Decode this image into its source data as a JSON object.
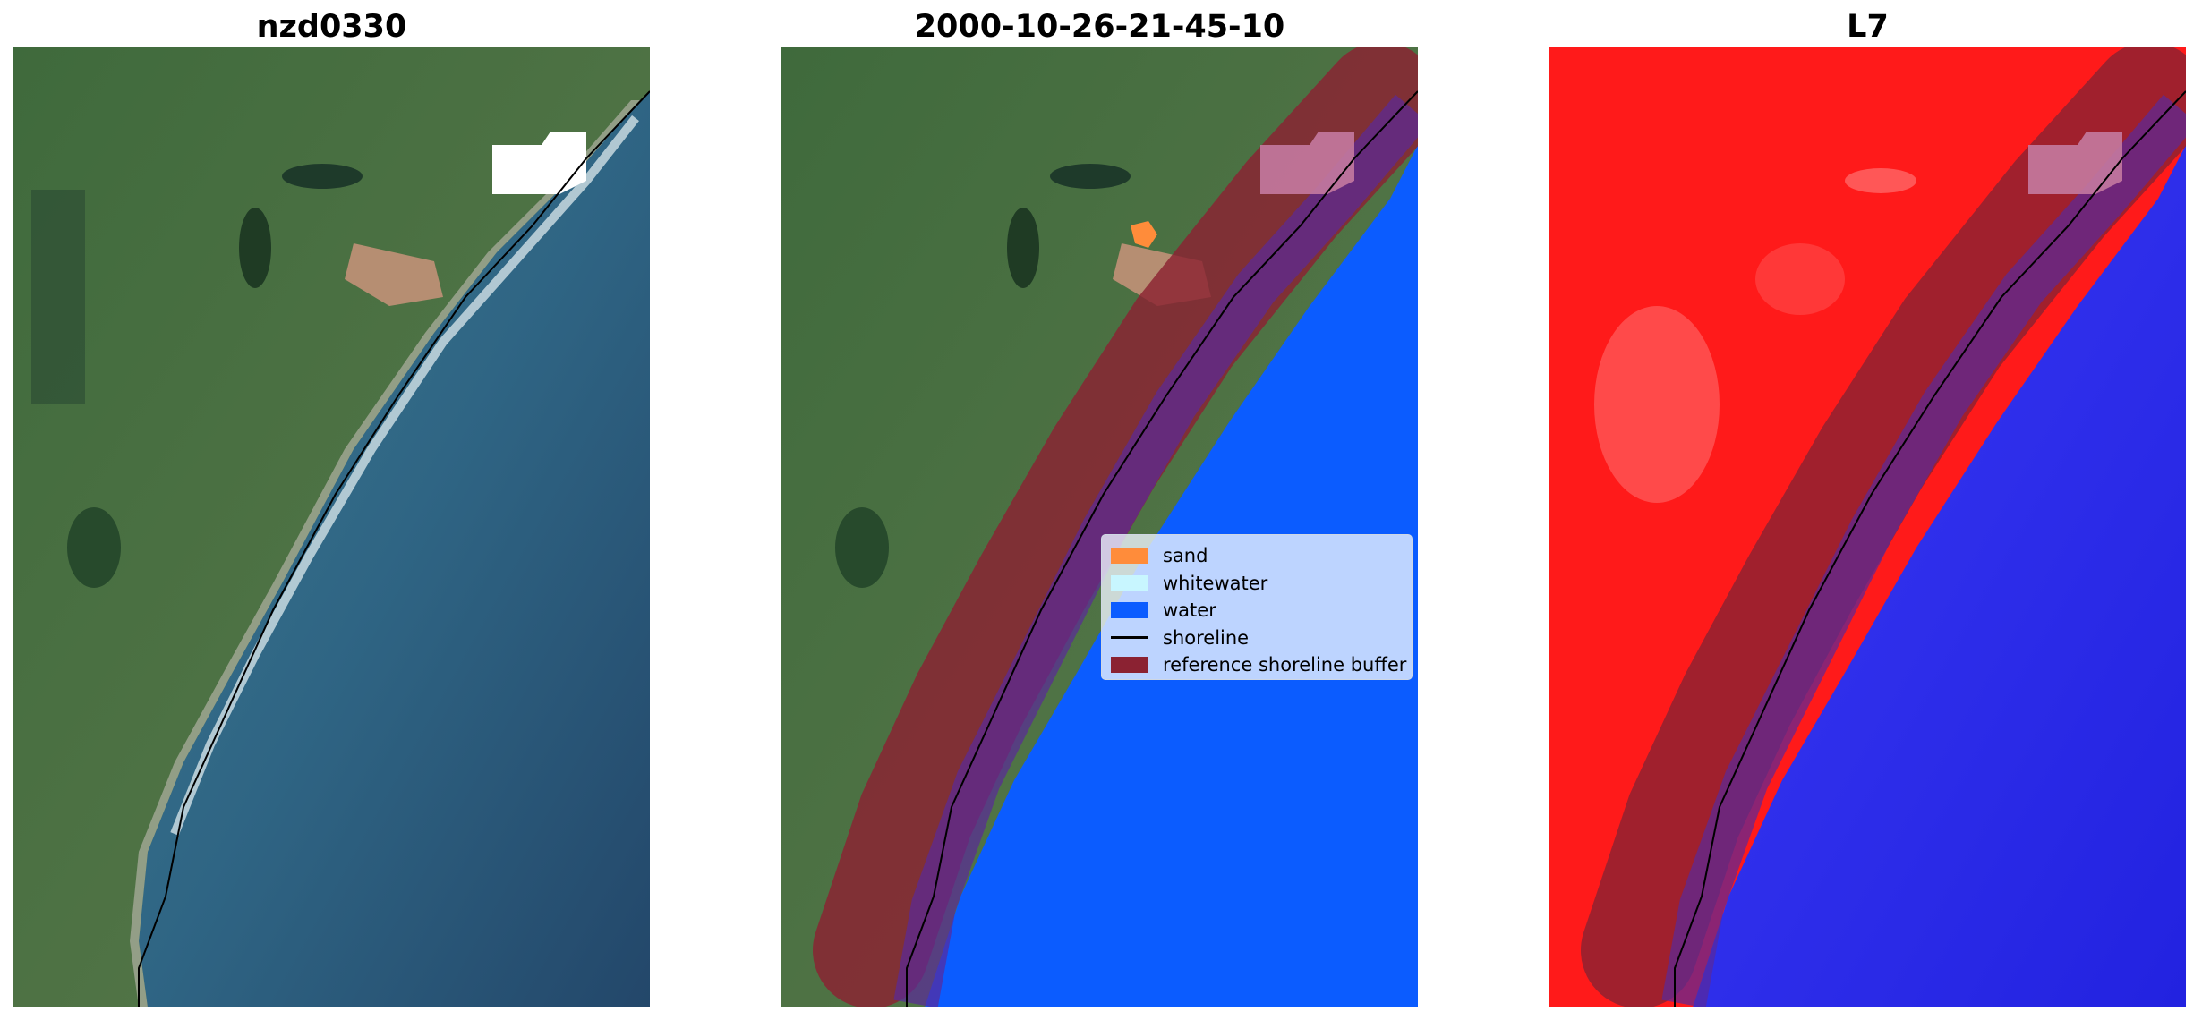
{
  "panels": [
    {
      "title": "nzd0330"
    },
    {
      "title": "2000-10-26-21-45-10"
    },
    {
      "title": "L7"
    }
  ],
  "legend": {
    "items": [
      {
        "label": "sand",
        "color": "#ff8c3a",
        "kind": "patch"
      },
      {
        "label": "whitewater",
        "color": "#c8f6ff",
        "kind": "patch"
      },
      {
        "label": "water",
        "color": "#0b5cff",
        "kind": "patch"
      },
      {
        "label": "shoreline",
        "color": "#000000",
        "kind": "line"
      },
      {
        "label": "reference shoreline buffer",
        "color": "#8b2232",
        "kind": "patch"
      }
    ]
  },
  "colors": {
    "land": "#4a6e3e",
    "sea": "#2e5f80",
    "water_class": "#0b5cff",
    "buffer": "#8b2232",
    "index_positive": "#ff1a1a",
    "index_negative": "#2b2bf0",
    "cloud_mask": "#ffffff"
  }
}
